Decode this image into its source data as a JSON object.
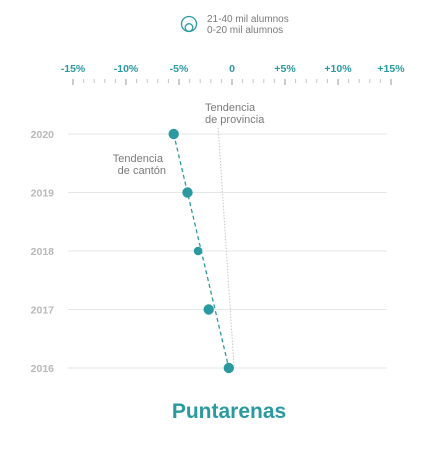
{
  "legend": {
    "items": [
      {
        "label": "21-40 mil alumnos",
        "icon": "large-circle-icon"
      },
      {
        "label": "0-20 mil alumnos",
        "icon": "small-circle-icon"
      }
    ]
  },
  "colors": {
    "accent": "#2b9aa0",
    "year_label": "#b8b8b8",
    "gridline": "#e6e6e6",
    "annotation": "#7a7a7a",
    "province_trend": "#c8c8c8"
  },
  "chart_data": {
    "type": "scatter",
    "title": "Puntarenas",
    "x_axis": {
      "range": [
        -15,
        15
      ],
      "ticks": [
        -15,
        -10,
        -5,
        0,
        5,
        10,
        15
      ],
      "tick_labels": [
        "-15%",
        "-10%",
        "-5%",
        "0",
        "+5%",
        "+10%",
        "+15%"
      ],
      "minor_step": 1,
      "position": "top"
    },
    "y_axis": {
      "categories": [
        "2020",
        "2019",
        "2018",
        "2017",
        "2016"
      ]
    },
    "series": [
      {
        "points": [
          {
            "year": "2020",
            "x": -5.5,
            "size_class": "21-40 mil alumnos"
          },
          {
            "year": "2019",
            "x": -4.2,
            "size_class": "21-40 mil alumnos"
          },
          {
            "year": "2018",
            "x": -3.2,
            "size_class": "0-20 mil alumnos"
          },
          {
            "year": "2017",
            "x": -2.2,
            "size_class": "21-40 mil alumnos"
          },
          {
            "year": "2016",
            "x": -0.3,
            "size_class": "21-40 mil alumnos"
          }
        ]
      }
    ],
    "trend_lines": [
      {
        "label": "Tendencia de cantón",
        "lines": [
          "Tendencia",
          "de cantón"
        ],
        "from": {
          "year": "2020",
          "x": -5.5
        },
        "to": {
          "year": "2016",
          "x": -0.3
        }
      },
      {
        "label": "Tendencia de provincia",
        "lines": [
          "Tendencia",
          "de provincia"
        ],
        "from": {
          "year": "2020",
          "x": -1.3
        },
        "to": {
          "year": "2016",
          "x": 0.2
        }
      }
    ]
  }
}
